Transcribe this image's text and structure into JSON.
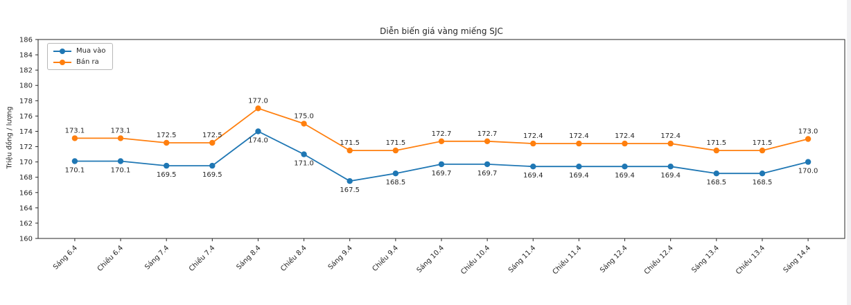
{
  "figure": {
    "title": "Diễn biến giá vàng miếng SJC",
    "ylabel": "Triệu đồng / lượng"
  },
  "legend": {
    "items": [
      {
        "label": "Mua vào",
        "color": "#1f77b4"
      },
      {
        "label": "Bán ra",
        "color": "#ff7f0e"
      }
    ]
  },
  "colors": {
    "buy_series": "#1f77b4",
    "sell_series": "#ff7f0e",
    "axis": "#262626",
    "tick_text": "#262626",
    "label_text": "#262626",
    "scrollbar": "#f0f0f2"
  },
  "chart_data": {
    "type": "line",
    "title": "Diễn biến giá vàng miếng SJC",
    "xlabel": "",
    "ylabel": "Triệu đồng / lượng",
    "categories": [
      "Sáng 6.4",
      "Chiều 6.4",
      "Sáng 7.4",
      "Chiều 7.4",
      "Sáng 8.4",
      "Chiều 8.4",
      "Sáng 9.4",
      "Chiều 9.4",
      "Sáng 10.4",
      "Chiều 10.4",
      "Sáng 11.4",
      "Chiều 11.4",
      "Sáng 12.4",
      "Chiều 12.4",
      "Sáng 13.4",
      "Chiều 13.4",
      "Sáng 14.4"
    ],
    "series": [
      {
        "name": "Mua vào",
        "color": "#1f77b4",
        "label_position": "below",
        "values": [
          170.1,
          170.1,
          169.5,
          169.5,
          174.0,
          171.0,
          167.5,
          168.5,
          169.7,
          169.7,
          169.4,
          169.4,
          169.4,
          169.4,
          168.5,
          168.5,
          170.0
        ]
      },
      {
        "name": "Bán ra",
        "color": "#ff7f0e",
        "label_position": "above",
        "values": [
          173.1,
          173.1,
          172.5,
          172.5,
          177.0,
          175.0,
          171.5,
          171.5,
          172.7,
          172.7,
          172.4,
          172.4,
          172.4,
          172.4,
          171.5,
          171.5,
          173.0
        ]
      }
    ],
    "ylim": [
      160,
      186
    ],
    "ytick_step": 2,
    "grid": false,
    "legend_position": "upper-left",
    "data_labels": true,
    "x_tick_rotation": 45
  }
}
